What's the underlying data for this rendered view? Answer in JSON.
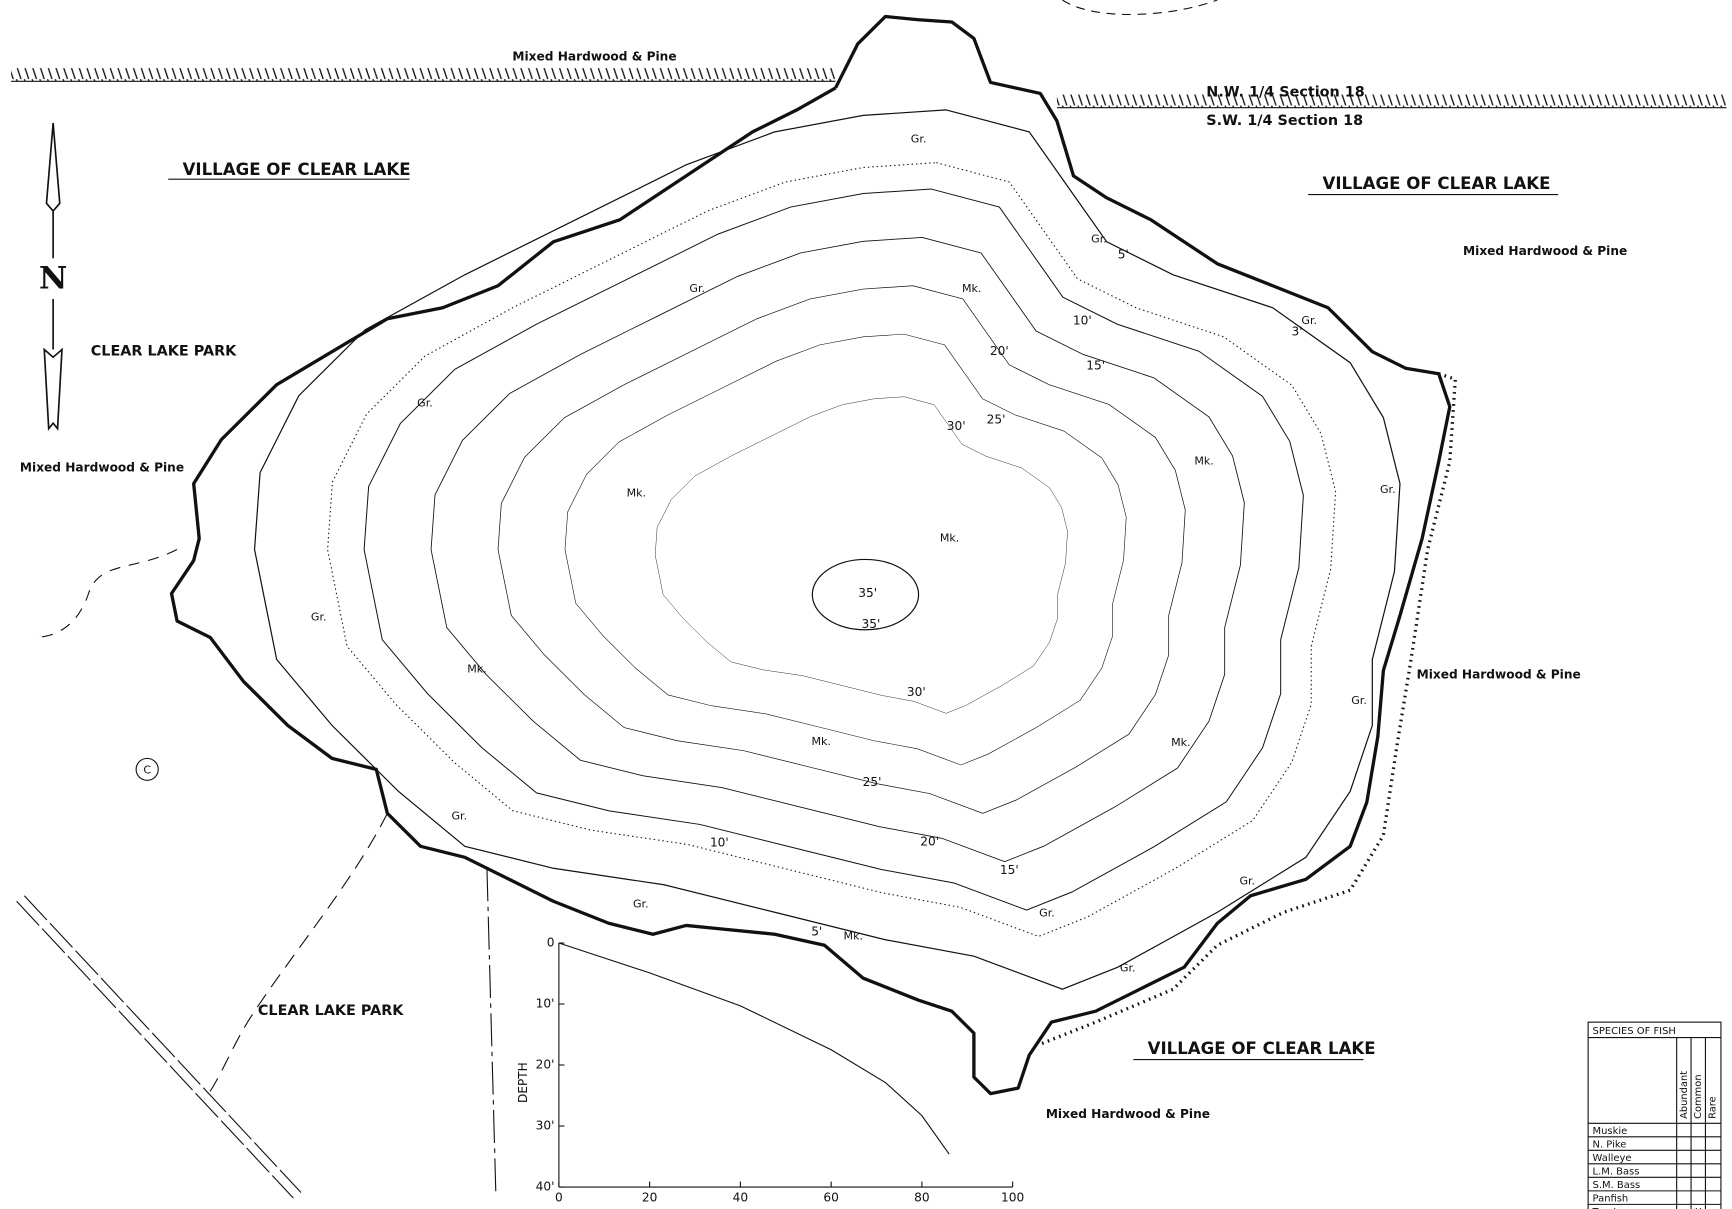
{
  "labels": [
    "Mixed Hardwood & Pine",
    "N.W. 1/4 Section 18",
    "S.W. 1/4 Section 18",
    "VILLAGE OF CLEAR LAKE",
    "VILLAGE OF CLEAR LAKE",
    "Mixed Hardwood & Pine",
    "N",
    "CLEAR LAKE PARK",
    "Mixed Hardwood & Pine",
    "Mixed Hardwood & Pine",
    "C",
    "CLEAR LAKE PARK",
    "VILLAGE OF CLEAR LAKE",
    "Mixed Hardwood & Pine"
  ],
  "contour_labels": [
    "5'",
    "10'",
    "15'",
    "20'",
    "25'",
    "30'",
    "35'",
    "35'",
    "30'",
    "25'",
    "20'",
    "15'",
    "10'",
    "5'",
    "3'"
  ],
  "bottom_labels": [
    "Gr.",
    "Gr.",
    "Gr.",
    "Mk.",
    "Gr.",
    "Gr.",
    "Gr.",
    "Mk.",
    "Mk.",
    "Mk.",
    "Mk.",
    "Gr.",
    "Mk.",
    "Mk.",
    "Gr.",
    "Gr.",
    "Gr.",
    "Mk.",
    "Gr.",
    "Gr.",
    "Gr.",
    "Gr."
  ],
  "depth_chart": {
    "type": "line",
    "y_label": "DEPTH",
    "x": [
      0,
      20,
      40,
      60,
      72,
      80,
      86
    ],
    "values": [
      0,
      4.9,
      10.3,
      17.5,
      22.9,
      28.3,
      34.6
    ],
    "xlim": [
      0,
      100
    ],
    "ylim": [
      0,
      40
    ],
    "xticks": [
      0,
      20,
      40,
      60,
      80,
      100
    ],
    "yticks": [
      0,
      {
        "value": 10,
        "label": "10'"
      },
      {
        "value": 20,
        "label": "20'"
      },
      {
        "value": 30,
        "label": "30'"
      },
      {
        "value": 40,
        "label": "40'"
      }
    ]
  },
  "fish_table": {
    "title": "SPECIES OF FISH",
    "columns": [
      "Abundant",
      "Common",
      "Rare"
    ],
    "rows": [
      [
        "Muskie",
        "",
        "",
        ""
      ],
      [
        "N. Pike",
        "",
        "",
        ""
      ],
      [
        "Walleye",
        "",
        "",
        ""
      ],
      [
        "L.M. Bass",
        "",
        "",
        ""
      ],
      [
        "S.M. Bass",
        "",
        "",
        ""
      ],
      [
        "Panfish",
        "",
        "",
        ""
      ],
      [
        "Trout",
        "",
        "X",
        ""
      ]
    ]
  }
}
